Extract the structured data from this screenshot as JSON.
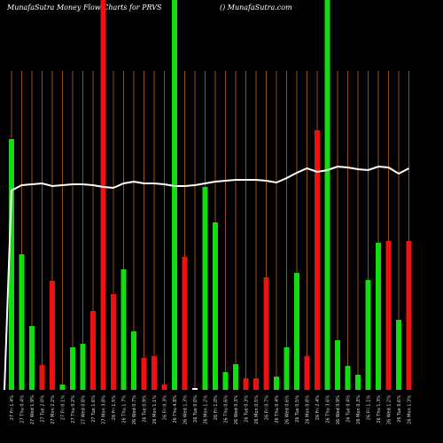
{
  "chart_data": {
    "type": "bar",
    "title": "MunafaSutra  Money Flow  Charts for PRVS",
    "subtitle": "() MunafaSutra.com",
    "categories": [
      "27 Fri 1.4%",
      "27 Thu 0.4%",
      "27 Wed 1.9%",
      "27 Tue 2.0%",
      "27 Mon 2.2%",
      "27 Fri 0.1%",
      "27 Thu 0.2%",
      "27 Wed 0.8%",
      "27 Tue 1.6%",
      "27 Mon 3.8%",
      "26 Fri 1.5%",
      "26 Thu 1.7%",
      "26 Wed 0.7%",
      "26 Tue 0.9%",
      "26 Mon 1.1%",
      "26 Fri 0.3%",
      "26 Thu 4.8%",
      "26 Wed 1.3%",
      "26 Tue 0.0%",
      "26 Mon 1.2%",
      "26 Fri 1.0%",
      "26 Thu 0.6%",
      "26 Wed 0.3%",
      "26 Tue 0.3%",
      "26 Mon 0.5%",
      "26 Fri 0.7%",
      "26 Thu 0.4%",
      "26 Wed 0.6%",
      "26 Tue 0.5%",
      "26 Mon 0.8%",
      "26 Fri 2.4%",
      "26 Thu 3.6%",
      "26 Wed 0.9%",
      "26 Tue 0.4%",
      "26 Mon 0.3%",
      "26 Fri 1.1%",
      "26 Thu 1.3%",
      "26 Wed 1.2%",
      "26 Tue 0.6%",
      "26 Mon 1.3%"
    ],
    "values": [
      283,
      153,
      72,
      28,
      123,
      6,
      48,
      52,
      89,
      440,
      108,
      136,
      66,
      36,
      38,
      6,
      440,
      150,
      2,
      229,
      189,
      20,
      29,
      13,
      13,
      127,
      15,
      48,
      132,
      38,
      293,
      440,
      56,
      27,
      17,
      124,
      166,
      168,
      79,
      168
    ],
    "colors": [
      "#11dd11",
      "#11dd11",
      "#11dd11",
      "#ee1111",
      "#ee1111",
      "#11dd11",
      "#11dd11",
      "#11dd11",
      "#ee1111",
      "#ee1111",
      "#ee1111",
      "#11dd11",
      "#11dd11",
      "#ee1111",
      "#ee1111",
      "#ee1111",
      "#11dd11",
      "#ee1111",
      "#ffffff",
      "#11dd11",
      "#11dd11",
      "#11dd11",
      "#11dd11",
      "#ee1111",
      "#ee1111",
      "#ee1111",
      "#11dd11",
      "#11dd11",
      "#11dd11",
      "#ee1111",
      "#ee1111",
      "#11dd11",
      "#11dd11",
      "#11dd11",
      "#11dd11",
      "#11dd11",
      "#11dd11",
      "#ee1111",
      "#11dd11",
      "#ee1111"
    ],
    "line": [
      225,
      231,
      232,
      233,
      230,
      231,
      232,
      232,
      231,
      229,
      228,
      233,
      235,
      233,
      233,
      232,
      230,
      230,
      231,
      233,
      235,
      236,
      237,
      237,
      237,
      236,
      234,
      239,
      245,
      250,
      246,
      248,
      252,
      251,
      249,
      248,
      252,
      251,
      244,
      250
    ],
    "line_color": "#ffffff",
    "ylim": [
      0,
      440
    ],
    "grid": true,
    "grid_color": "#b5651d"
  }
}
